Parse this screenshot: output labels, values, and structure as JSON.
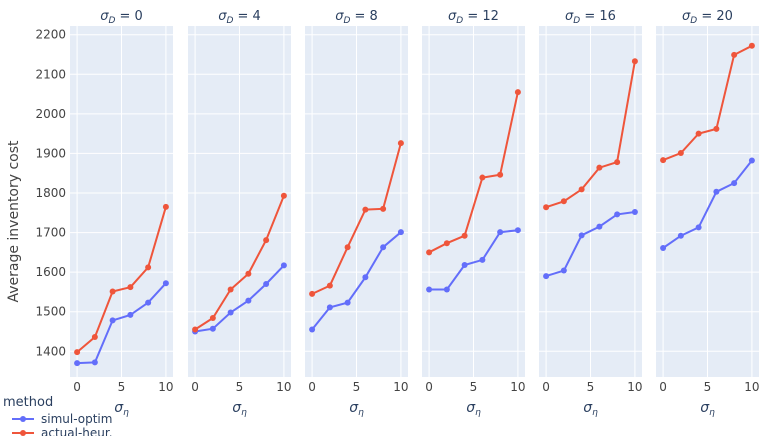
{
  "chart_data": {
    "type": "line",
    "ylabel": "Average inventory cost",
    "xlabel_symbol": "σ",
    "xlabel_sub": "η",
    "title_symbol": "σ",
    "title_sub": "D",
    "x": [
      0,
      2,
      4,
      6,
      8,
      10
    ],
    "xticks": [
      0,
      5,
      10
    ],
    "xlim": [
      -0.8,
      10.8
    ],
    "ylim": [
      1335,
      2222
    ],
    "yticks": [
      1400,
      1500,
      1600,
      1700,
      1800,
      1900,
      2000,
      2100,
      2200
    ],
    "legend_title": "method",
    "legend_position": "bottom-left",
    "colors": {
      "simul-optim": "#636efa",
      "actual-heur.": "#ef553b",
      "plot_bg": "#e5ecf6",
      "grid": "#ffffff"
    },
    "panels": [
      {
        "sigma_d": "0",
        "series": [
          {
            "name": "simul-optim",
            "values": [
              1370,
              1372,
              1478,
              1492,
              1523,
              1572
            ]
          },
          {
            "name": "actual-heur.",
            "values": [
              1398,
              1436,
              1551,
              1562,
              1612,
              1765
            ]
          }
        ]
      },
      {
        "sigma_d": "4",
        "series": [
          {
            "name": "simul-optim",
            "values": [
              1450,
              1457,
              1498,
              1528,
              1570,
              1617
            ]
          },
          {
            "name": "actual-heur.",
            "values": [
              1455,
              1484,
              1556,
              1596,
              1681,
              1793
            ]
          }
        ]
      },
      {
        "sigma_d": "8",
        "series": [
          {
            "name": "simul-optim",
            "values": [
              1455,
              1511,
              1523,
              1587,
              1663,
              1701
            ]
          },
          {
            "name": "actual-heur.",
            "values": [
              1545,
              1566,
              1663,
              1758,
              1760,
              1926
            ]
          }
        ]
      },
      {
        "sigma_d": "12",
        "series": [
          {
            "name": "simul-optim",
            "values": [
              1556,
              1556,
              1618,
              1631,
              1701,
              1706
            ]
          },
          {
            "name": "actual-heur.",
            "values": [
              1650,
              1673,
              1692,
              1839,
              1846,
              2055
            ]
          }
        ]
      },
      {
        "sigma_d": "16",
        "series": [
          {
            "name": "simul-optim",
            "values": [
              1590,
              1604,
              1693,
              1715,
              1746,
              1752
            ]
          },
          {
            "name": "actual-heur.",
            "values": [
              1764,
              1779,
              1809,
              1864,
              1878,
              2133
            ]
          }
        ]
      },
      {
        "sigma_d": "20",
        "series": [
          {
            "name": "simul-optim",
            "values": [
              1661,
              1692,
              1713,
              1803,
              1825,
              1882
            ]
          },
          {
            "name": "actual-heur.",
            "values": [
              1883,
              1901,
              1950,
              1962,
              2149,
              2172
            ]
          }
        ]
      }
    ]
  }
}
